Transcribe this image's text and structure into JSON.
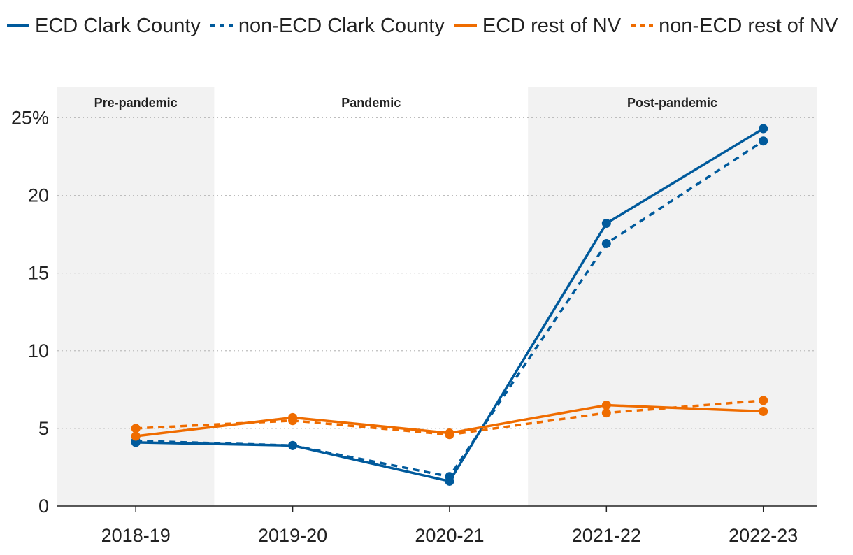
{
  "chart_data": {
    "type": "line",
    "title": "",
    "xlabel": "",
    "ylabel": "",
    "categories": [
      "2018-19",
      "2019-20",
      "2020-21",
      "2021-22",
      "2022-23"
    ],
    "ylim": [
      0,
      25
    ],
    "y_ticks": [
      {
        "value": 0,
        "label": "0"
      },
      {
        "value": 5,
        "label": "5"
      },
      {
        "value": 10,
        "label": "10"
      },
      {
        "value": 15,
        "label": "15"
      },
      {
        "value": 20,
        "label": "20"
      },
      {
        "value": 25,
        "label": "25%"
      }
    ],
    "grid": "horizontal dotted",
    "legend_position": "top",
    "series": [
      {
        "name": "ECD Clark County",
        "color": "#005a9c",
        "dash": false,
        "values": [
          4.1,
          3.9,
          1.6,
          18.2,
          24.3
        ]
      },
      {
        "name": "non-ECD Clark County",
        "color": "#005a9c",
        "dash": true,
        "values": [
          4.2,
          3.9,
          1.9,
          16.9,
          23.5
        ]
      },
      {
        "name": "ECD rest of NV",
        "color": "#ef6c00",
        "dash": false,
        "values": [
          4.5,
          5.7,
          4.7,
          6.5,
          6.1
        ]
      },
      {
        "name": "non-ECD rest of NV",
        "color": "#ef6c00",
        "dash": true,
        "values": [
          5.0,
          5.5,
          4.6,
          6.0,
          6.8
        ]
      }
    ],
    "periods": [
      {
        "label": "Pre-pandemic",
        "from": -0.5,
        "to": 0.5,
        "shaded": true
      },
      {
        "label": "Pandemic",
        "from": 0.5,
        "to": 2.5,
        "shaded": false
      },
      {
        "label": "Post-pandemic",
        "from": 2.5,
        "to": 4.5,
        "shaded": true
      }
    ]
  }
}
